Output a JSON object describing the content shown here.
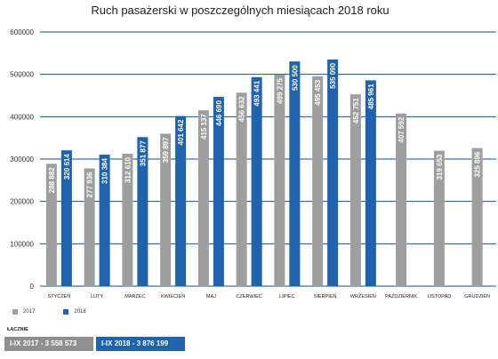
{
  "colors": {
    "series_2017": "#9e9e9e",
    "series_2018": "#1f62ad",
    "grid": "#1a4f8c"
  },
  "chart_data": {
    "type": "bar",
    "title": "Ruch pasażerski w poszczególnych miesiącach 2018 roku",
    "ylim": [
      0,
      600000
    ],
    "yticks": [
      0,
      100000,
      200000,
      300000,
      400000,
      500000,
      600000
    ],
    "ytick_labels": [
      "0",
      "100000",
      "200000",
      "300000",
      "400000",
      "500000",
      "600000"
    ],
    "grid": true,
    "legend_position": "bottom-left",
    "categories": [
      "STYCZEŃ",
      "LUTY",
      "MARZEC",
      "KWIECIEŃ",
      "MAJ",
      "CZERWIEC",
      "LIPIEC",
      "SIERPIEŃ",
      "WRZESIEŃ",
      "PAŹDZIERNIK",
      "LISTOPAD",
      "GRUDZIEŃ"
    ],
    "series": [
      {
        "name": "2017",
        "values": [
          288882,
          277936,
          312610,
          359897,
          415137,
          456632,
          499275,
          495453,
          452751,
          407592,
          319653,
          325896
        ],
        "labels": [
          "288 882",
          "277 936",
          "312 610",
          "359 897",
          "415 137",
          "456 632",
          "499 275",
          "495 453",
          "452 751",
          "407 592",
          "319 653",
          "325 896"
        ]
      },
      {
        "name": "2018",
        "values": [
          320614,
          310384,
          351877,
          401642,
          446690,
          493441,
          530500,
          535090,
          485961,
          null,
          null,
          null
        ],
        "labels": [
          "320 614",
          "310 384",
          "351 877",
          "401 642",
          "446 690",
          "493 441",
          "530 500",
          "535 090",
          "485 961",
          null,
          null,
          null
        ]
      }
    ]
  },
  "legend": {
    "items": [
      {
        "label": "2017"
      },
      {
        "label": "2018"
      }
    ]
  },
  "totals": {
    "heading": "ŁĄCZNIE",
    "t2017": "I-IX 2017 - 3 558 573",
    "t2018": "I-IX 2018 - 3 876 199"
  }
}
